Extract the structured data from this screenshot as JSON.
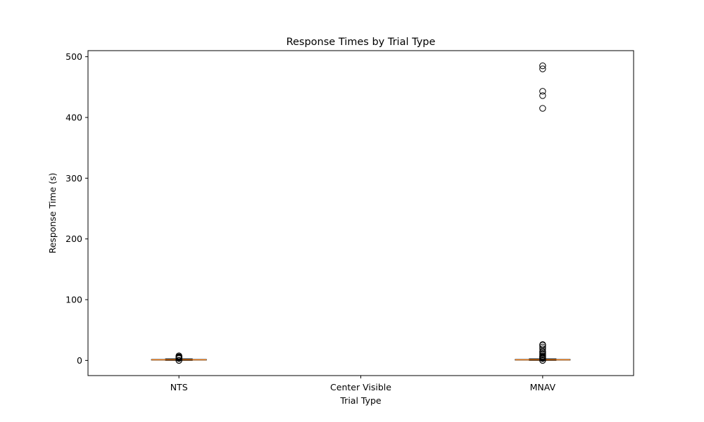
{
  "chart_data": {
    "type": "box",
    "title": "Response Times by Trial Type",
    "xlabel": "Trial Type",
    "ylabel": "Response Time (s)",
    "categories": [
      "NTS",
      "Center Visible",
      "MNAV"
    ],
    "ylim": [
      -25,
      510
    ],
    "yticks": [
      0,
      100,
      200,
      300,
      400,
      500
    ],
    "grid": false,
    "boxes": [
      {
        "category": "NTS",
        "q1": 0.6,
        "median": 1.0,
        "q3": 1.5,
        "whisker_low": 0.1,
        "whisker_high": 2.5,
        "outliers": [
          7.5,
          6.0,
          5.2,
          4.5,
          4.0,
          3.5,
          3.1,
          0.2,
          0.0
        ]
      },
      {
        "category": "Center Visible",
        "q1": null,
        "median": null,
        "q3": null,
        "whisker_low": null,
        "whisker_high": null,
        "outliers": []
      },
      {
        "category": "MNAV",
        "q1": 0.6,
        "median": 1.0,
        "q3": 1.5,
        "whisker_low": 0.1,
        "whisker_high": 2.5,
        "outliers": [
          485,
          480,
          443,
          436,
          415,
          26,
          25,
          22,
          19,
          15,
          13,
          11,
          9,
          7,
          6,
          5,
          4,
          3.5,
          3,
          0.2,
          0.0
        ]
      }
    ],
    "colors": {
      "box": "#000000",
      "median": "#ff7f0e",
      "outlier": "#000000"
    }
  }
}
